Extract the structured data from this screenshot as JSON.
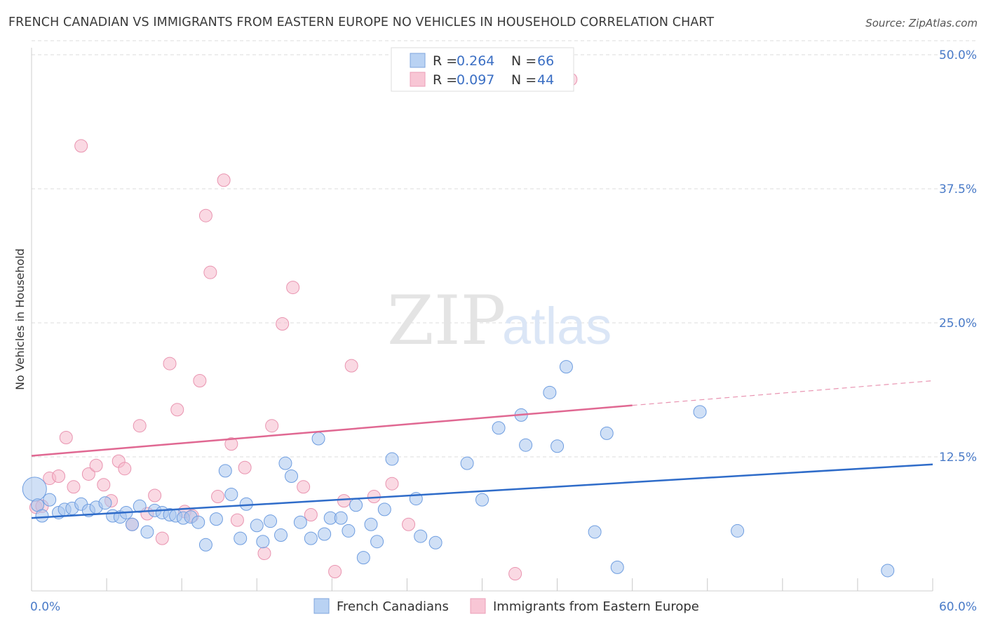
{
  "title": "FRENCH CANADIAN VS IMMIGRANTS FROM EASTERN EUROPE NO VEHICLES IN HOUSEHOLD CORRELATION CHART",
  "source": "Source: ZipAtlas.com",
  "watermark": {
    "zip": "ZIP",
    "atlas": "atlas"
  },
  "chart_data": {
    "type": "scatter",
    "title": "FRENCH CANADIAN VS IMMIGRANTS FROM EASTERN EUROPE NO VEHICLES IN HOUSEHOLD CORRELATION CHART",
    "xlabel": "",
    "ylabel": "No Vehicles in Household",
    "xlim": [
      0,
      60
    ],
    "ylim": [
      0,
      50
    ],
    "x_tick_labels": [
      "0.0%",
      "60.0%"
    ],
    "y_ticks": [
      12.5,
      25.0,
      37.5,
      50.0
    ],
    "y_tick_labels": [
      "12.5%",
      "25.0%",
      "37.5%",
      "50.0%"
    ],
    "grid": "horizontal dashed",
    "legend_position": "top-center",
    "colors": {
      "french_canadians": "#6e9de0",
      "immigrants_eastern_europe": "#ef9ab5",
      "blue_line": "#2f6cc9",
      "pink_line": "#e06892"
    },
    "legend": [
      {
        "r_label": "R = ",
        "r_value": "0.264",
        "n_label": "N = ",
        "n_value": "66"
      },
      {
        "r_label": "R = ",
        "r_value": "0.097",
        "n_label": "N = ",
        "n_value": "44"
      }
    ],
    "series": [
      {
        "name": "French Canadians",
        "trend": {
          "x": [
            0,
            60
          ],
          "y": [
            6.8,
            11.8
          ]
        },
        "points": [
          [
            0.2,
            9.5
          ],
          [
            0.4,
            8.0
          ],
          [
            0.7,
            7.0
          ],
          [
            1.2,
            8.5
          ],
          [
            1.8,
            7.3
          ],
          [
            2.2,
            7.6
          ],
          [
            2.7,
            7.7
          ],
          [
            3.3,
            8.1
          ],
          [
            3.8,
            7.5
          ],
          [
            4.3,
            7.8
          ],
          [
            4.9,
            8.2
          ],
          [
            5.4,
            7.0
          ],
          [
            5.9,
            6.9
          ],
          [
            6.3,
            7.3
          ],
          [
            6.7,
            6.2
          ],
          [
            7.2,
            7.9
          ],
          [
            7.7,
            5.5
          ],
          [
            8.2,
            7.5
          ],
          [
            8.7,
            7.3
          ],
          [
            9.2,
            7.1
          ],
          [
            9.6,
            7.0
          ],
          [
            10.1,
            6.8
          ],
          [
            10.6,
            6.9
          ],
          [
            11.1,
            6.4
          ],
          [
            11.6,
            4.3
          ],
          [
            12.3,
            6.7
          ],
          [
            12.9,
            11.2
          ],
          [
            13.3,
            9.0
          ],
          [
            13.9,
            4.9
          ],
          [
            14.3,
            8.1
          ],
          [
            15.0,
            6.1
          ],
          [
            15.4,
            4.6
          ],
          [
            15.9,
            6.5
          ],
          [
            16.6,
            5.2
          ],
          [
            16.9,
            11.9
          ],
          [
            17.3,
            10.7
          ],
          [
            17.9,
            6.4
          ],
          [
            18.6,
            4.9
          ],
          [
            19.1,
            14.2
          ],
          [
            19.5,
            5.3
          ],
          [
            19.9,
            6.8
          ],
          [
            20.6,
            6.8
          ],
          [
            21.1,
            5.6
          ],
          [
            21.6,
            8.0
          ],
          [
            22.1,
            3.1
          ],
          [
            22.6,
            6.2
          ],
          [
            23.0,
            4.6
          ],
          [
            23.5,
            7.6
          ],
          [
            24.0,
            12.3
          ],
          [
            25.6,
            8.6
          ],
          [
            25.9,
            5.1
          ],
          [
            26.9,
            4.5
          ],
          [
            29.0,
            11.9
          ],
          [
            30.0,
            8.5
          ],
          [
            31.1,
            15.2
          ],
          [
            32.6,
            16.4
          ],
          [
            32.9,
            13.6
          ],
          [
            34.5,
            18.5
          ],
          [
            35.0,
            13.5
          ],
          [
            35.6,
            20.9
          ],
          [
            37.5,
            5.5
          ],
          [
            38.3,
            14.7
          ],
          [
            39.0,
            2.2
          ],
          [
            44.5,
            16.7
          ],
          [
            47.0,
            5.6
          ],
          [
            57.0,
            1.9
          ]
        ]
      },
      {
        "name": "Immigrants from Eastern Europe",
        "trend": {
          "x": [
            0,
            40.0
          ],
          "y": [
            12.6,
            17.3
          ],
          "dashed_to": {
            "x": 60,
            "y": 19.6
          }
        },
        "points": [
          [
            0.3,
            7.8
          ],
          [
            0.7,
            7.9
          ],
          [
            1.2,
            10.5
          ],
          [
            1.8,
            10.7
          ],
          [
            2.3,
            14.3
          ],
          [
            2.8,
            9.7
          ],
          [
            3.3,
            41.5
          ],
          [
            3.8,
            10.9
          ],
          [
            4.3,
            11.7
          ],
          [
            4.8,
            9.9
          ],
          [
            5.3,
            8.4
          ],
          [
            5.8,
            12.1
          ],
          [
            6.2,
            11.4
          ],
          [
            6.7,
            6.2
          ],
          [
            7.2,
            15.4
          ],
          [
            7.7,
            7.2
          ],
          [
            8.2,
            8.9
          ],
          [
            8.7,
            4.9
          ],
          [
            9.2,
            21.2
          ],
          [
            9.7,
            16.9
          ],
          [
            10.2,
            7.4
          ],
          [
            10.7,
            7.0
          ],
          [
            11.2,
            19.6
          ],
          [
            11.6,
            35.0
          ],
          [
            11.9,
            29.7
          ],
          [
            12.4,
            8.8
          ],
          [
            12.8,
            38.3
          ],
          [
            13.3,
            13.7
          ],
          [
            13.7,
            6.6
          ],
          [
            14.2,
            11.5
          ],
          [
            15.5,
            3.5
          ],
          [
            16.0,
            15.4
          ],
          [
            16.7,
            24.9
          ],
          [
            17.4,
            28.3
          ],
          [
            18.1,
            9.7
          ],
          [
            18.6,
            7.1
          ],
          [
            20.2,
            1.8
          ],
          [
            20.8,
            8.4
          ],
          [
            21.3,
            21.0
          ],
          [
            22.8,
            8.8
          ],
          [
            24.0,
            10.0
          ],
          [
            25.1,
            6.2
          ],
          [
            32.2,
            1.6
          ],
          [
            35.9,
            47.7
          ]
        ]
      }
    ]
  },
  "bottom_legend": [
    "French Canadians",
    "Immigrants from Eastern Europe"
  ]
}
